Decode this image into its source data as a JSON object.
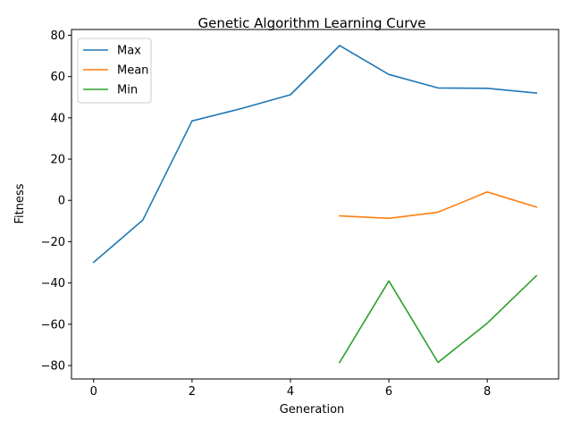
{
  "chart_data": {
    "type": "line",
    "title": "Genetic Algorithm Learning Curve",
    "xlabel": "Generation",
    "ylabel": "Fitness",
    "xlim": [
      -0.45,
      9.45
    ],
    "ylim": [
      -86.5,
      82.8
    ],
    "xticks": [
      0,
      2,
      4,
      6,
      8
    ],
    "yticks": [
      -80,
      -60,
      -40,
      -20,
      0,
      20,
      40,
      60,
      80
    ],
    "grid": false,
    "legend_position": "top-left",
    "series": [
      {
        "name": "Max",
        "color": "#1f77b4",
        "x": [
          0,
          1,
          2,
          3,
          4,
          5,
          6,
          7,
          8,
          9
        ],
        "y": [
          -30,
          -9.5,
          38.5,
          44.5,
          51.2,
          75,
          61,
          54.5,
          54.3,
          52
        ]
      },
      {
        "name": "Mean",
        "color": "#ff7f0e",
        "x": [
          5,
          6,
          7,
          8,
          9
        ],
        "y": [
          -7.5,
          -8.7,
          -5.7,
          4.1,
          -3.2
        ]
      },
      {
        "name": "Min",
        "color": "#2ca02c",
        "x": [
          5,
          6,
          7,
          8,
          9
        ],
        "y": [
          -78.5,
          -39,
          -78.5,
          -59.5,
          -36.5
        ]
      }
    ]
  }
}
